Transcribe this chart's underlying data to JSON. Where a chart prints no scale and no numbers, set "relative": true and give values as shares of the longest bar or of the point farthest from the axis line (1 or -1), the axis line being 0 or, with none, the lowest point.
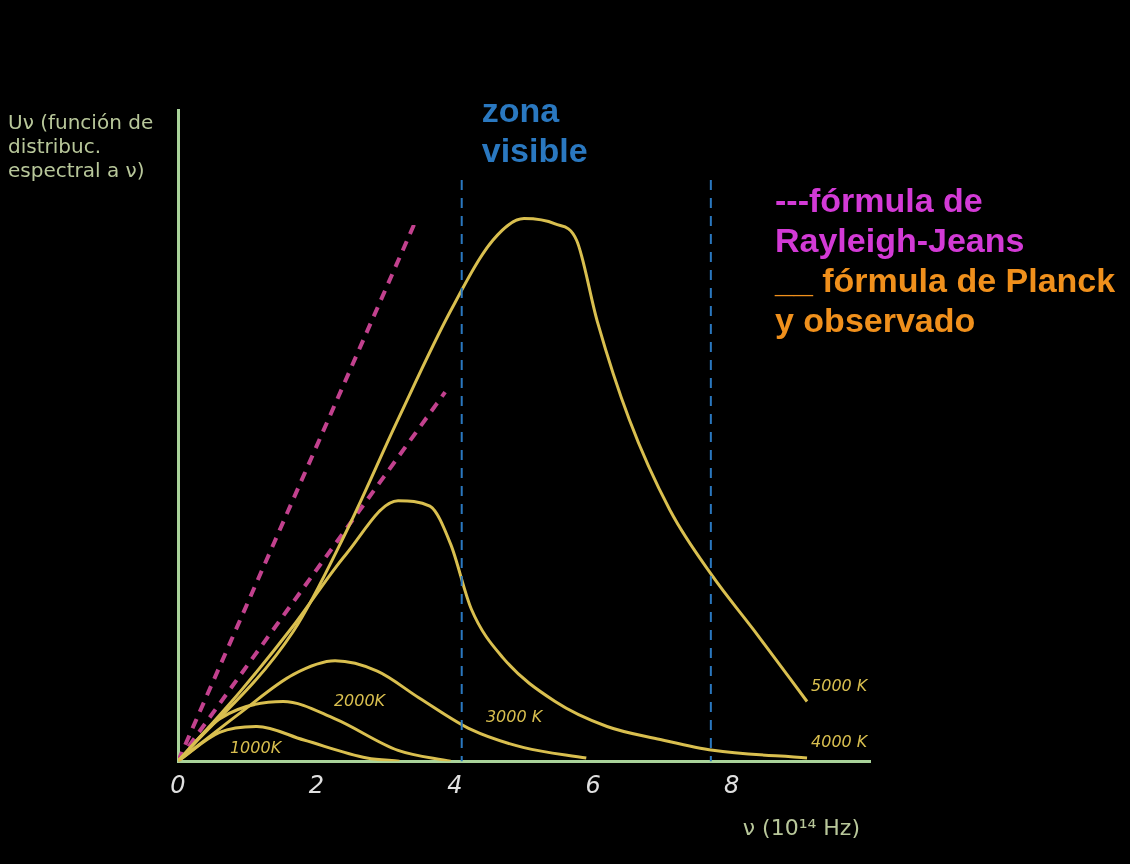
{
  "chart_data": {
    "type": "line",
    "relative": true,
    "xlabel": "ν (10¹⁴ Hz)",
    "ylabel": "Uν (función de distribuc. espectral a ν)",
    "xlim": [
      0,
      10
    ],
    "xticks": [
      0,
      2,
      4,
      6,
      8
    ],
    "grid": false,
    "series": [
      {
        "name": "5000 K",
        "color": "#d9bf4f",
        "x": [
          0,
          1.67,
          2.42,
          3.18,
          3.94,
          4.55,
          5.0,
          5.45,
          5.76,
          6.06,
          6.52,
          7.12,
          7.73,
          8.33,
          9.09
        ],
        "values": [
          0,
          0.24,
          0.42,
          0.63,
          0.83,
          0.96,
          1.0,
          0.99,
          0.96,
          0.81,
          0.63,
          0.46,
          0.34,
          0.24,
          0.11
        ]
      },
      {
        "name": "4000 K",
        "color": "#d9bf4f",
        "x": [
          0,
          0.91,
          1.67,
          2.42,
          3.18,
          3.64,
          3.94,
          4.24,
          4.7,
          5.45,
          6.2,
          6.97,
          7.73,
          9.09
        ],
        "values": [
          0,
          0.13,
          0.25,
          0.38,
          0.48,
          0.47,
          0.4,
          0.28,
          0.19,
          0.11,
          0.064,
          0.04,
          0.02,
          0.006
        ]
      },
      {
        "name": "3000 K",
        "color": "#d9bf4f",
        "x": [
          0,
          0.91,
          1.67,
          2.27,
          2.88,
          3.48,
          4.24,
          5.0,
          5.9
        ],
        "values": [
          0,
          0.09,
          0.16,
          0.185,
          0.166,
          0.117,
          0.058,
          0.025,
          0.006
        ]
      },
      {
        "name": "2000K",
        "color": "#d9bf4f",
        "x": [
          0,
          0.6,
          1.52,
          2.27,
          3.18,
          3.94
        ],
        "values": [
          0,
          0.078,
          0.11,
          0.078,
          0.02,
          0
        ]
      },
      {
        "name": "1000K",
        "color": "#d9bf4f",
        "x": [
          0,
          0.6,
          1.14,
          1.82,
          2.73,
          3.2
        ],
        "values": [
          0,
          0.053,
          0.064,
          0.039,
          0.006,
          0
        ]
      },
      {
        "color": "#c2418e",
        "line_style": "dashed",
        "x": [
          0,
          3.45
        ],
        "values": [
          0,
          1.0
        ]
      },
      {
        "color": "#c2418e",
        "line_style": "dashed",
        "x": [
          0,
          3.86
        ],
        "values": [
          0,
          0.68
        ]
      }
    ],
    "ref_lines": [
      {
        "axis": "x",
        "value": 4.1,
        "label": "zona visible",
        "color": "#2a78c0",
        "line_style": "dashed"
      },
      {
        "axis": "x",
        "value": 7.7,
        "color": "#2a78c0",
        "line_style": "dashed"
      }
    ],
    "annotations": [
      "---fórmula de Rayleigh-Jeans",
      "__ fórmula de Planck y observado"
    ]
  }
}
